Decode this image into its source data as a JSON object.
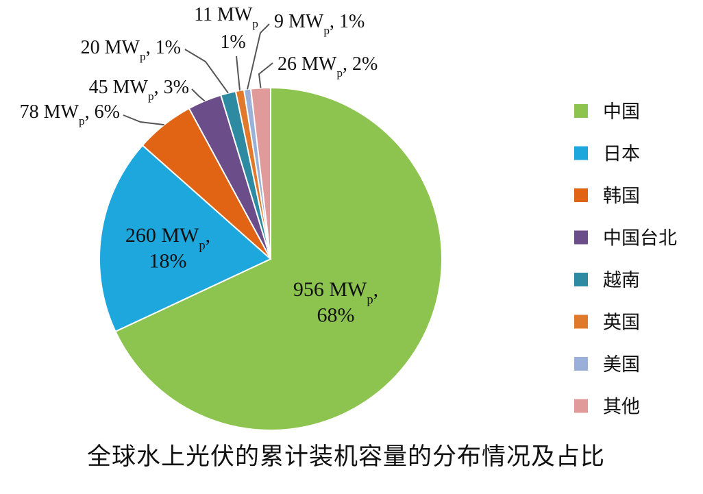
{
  "chart_data": {
    "type": "pie",
    "title": "全球水上光伏的累计装机容量的分布情况及占比",
    "unit": "MWp",
    "slices": [
      {
        "name": "中国",
        "value": 956,
        "percent": "68%",
        "color": "#8dc450"
      },
      {
        "name": "日本",
        "value": 260,
        "percent": "18%",
        "color": "#1da7dc"
      },
      {
        "name": "韩国",
        "value": 78,
        "percent": "6%",
        "color": "#e06414"
      },
      {
        "name": "中国台北",
        "value": 45,
        "percent": "3%",
        "color": "#6b4d8a"
      },
      {
        "name": "越南",
        "value": 20,
        "percent": "1%",
        "color": "#2e8aa0"
      },
      {
        "name": "英国",
        "value": 11,
        "percent": "1%",
        "color": "#e07a2a"
      },
      {
        "name": "美国",
        "value": 9,
        "percent": "1%",
        "color": "#9bb0d8"
      },
      {
        "name": "其他",
        "value": 26,
        "percent": "2%",
        "color": "#e09a9a"
      }
    ],
    "legend_position": "right"
  }
}
